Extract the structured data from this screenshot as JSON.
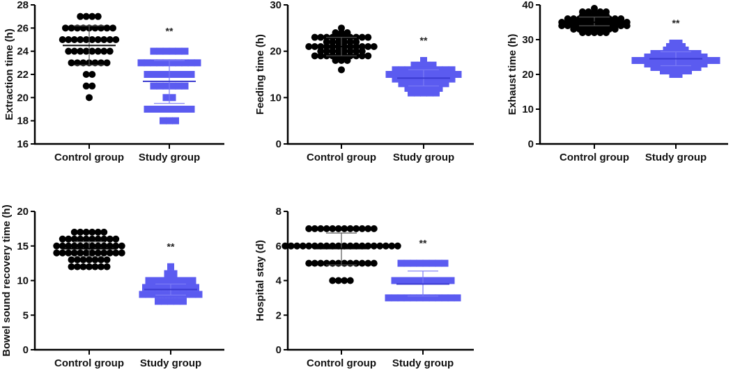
{
  "colors": {
    "control": "#000000",
    "study": "#5b5bf0",
    "axis": "#000000"
  },
  "chart_data": [
    {
      "type": "scatter",
      "ylabel": "Extraction time (h)",
      "ylim": [
        16,
        28
      ],
      "yticks": [
        16,
        18,
        20,
        22,
        24,
        26,
        28
      ],
      "categories": [
        "Control group",
        "Study group"
      ],
      "annotation": "**",
      "series": [
        {
          "name": "Control group",
          "marker": "circle",
          "levels": [
            [
              27,
              4
            ],
            [
              26,
              9
            ],
            [
              25,
              10
            ],
            [
              24,
              8
            ],
            [
              23,
              7
            ],
            [
              22,
              2
            ],
            [
              21,
              2
            ],
            [
              20,
              1
            ]
          ],
          "mean": 24.5,
          "sd": [
            22.8,
            26.2
          ]
        },
        {
          "name": "Study group",
          "marker": "square",
          "levels": [
            [
              24,
              6
            ],
            [
              23,
              10
            ],
            [
              22,
              8
            ],
            [
              21,
              6
            ],
            [
              20,
              2
            ],
            [
              19,
              8
            ],
            [
              18,
              3
            ]
          ],
          "mean": 21.4,
          "sd": [
            19.5,
            23.2
          ]
        }
      ]
    },
    {
      "type": "scatter",
      "ylabel": "Feeding time (h)",
      "ylim": [
        0,
        30
      ],
      "yticks": [
        0,
        10,
        20,
        30
      ],
      "categories": [
        "Control group",
        "Study group"
      ],
      "annotation": "**",
      "series": [
        {
          "name": "Control group",
          "marker": "circle",
          "levels": [
            [
              25,
              1
            ],
            [
              24,
              3
            ],
            [
              23,
              10
            ],
            [
              22,
              6
            ],
            [
              21,
              12
            ],
            [
              20,
              8
            ],
            [
              19,
              10
            ],
            [
              18,
              3
            ],
            [
              16,
              1
            ]
          ],
          "mean": 21,
          "sd": [
            19,
            23
          ]
        },
        {
          "name": "Study group",
          "marker": "square",
          "levels": [
            [
              18,
              1
            ],
            [
              17,
              4
            ],
            [
              16,
              10
            ],
            [
              15,
              12
            ],
            [
              14,
              10
            ],
            [
              13,
              8
            ],
            [
              12,
              6
            ],
            [
              11,
              5
            ]
          ],
          "mean": 14.2,
          "sd": [
            12.5,
            16
          ]
        }
      ]
    },
    {
      "type": "scatter",
      "ylabel": "Exhaust time (h)",
      "ylim": [
        0,
        40
      ],
      "yticks": [
        0,
        10,
        20,
        30,
        40
      ],
      "categories": [
        "Control group",
        "Study group"
      ],
      "annotation": "**",
      "series": [
        {
          "name": "Control group",
          "marker": "circle",
          "levels": [
            [
              39,
              1
            ],
            [
              38,
              5
            ],
            [
              37,
              5
            ],
            [
              36,
              10
            ],
            [
              35,
              12
            ],
            [
              34,
              12
            ],
            [
              33,
              8
            ],
            [
              32,
              5
            ]
          ],
          "mean": 35,
          "sd": [
            34,
            36.5
          ]
        },
        {
          "name": "Study group",
          "marker": "square",
          "levels": [
            [
              29,
              2
            ],
            [
              28,
              3
            ],
            [
              27,
              4
            ],
            [
              26,
              8
            ],
            [
              25,
              10
            ],
            [
              24,
              14
            ],
            [
              23,
              10
            ],
            [
              22,
              8
            ],
            [
              21,
              5
            ],
            [
              20,
              2
            ]
          ],
          "mean": 24.5,
          "sd": [
            22.5,
            26.5
          ]
        }
      ]
    },
    {
      "type": "scatter",
      "ylabel": "Bowel sound recovery time (h)",
      "ylim": [
        0,
        20
      ],
      "yticks": [
        0,
        5,
        10,
        15,
        20
      ],
      "categories": [
        "Control group",
        "Study group"
      ],
      "annotation": "**",
      "series": [
        {
          "name": "Control group",
          "marker": "circle",
          "levels": [
            [
              17,
              6
            ],
            [
              16,
              10
            ],
            [
              15,
              12
            ],
            [
              14,
              12
            ],
            [
              13,
              7
            ],
            [
              12,
              7
            ]
          ],
          "mean": 14.6,
          "sd": [
            13.5,
            15.6
          ]
        },
        {
          "name": "Study group",
          "marker": "square",
          "levels": [
            [
              12,
              1
            ],
            [
              11,
              2
            ],
            [
              10,
              8
            ],
            [
              9,
              9
            ],
            [
              8,
              10
            ],
            [
              7,
              5
            ]
          ],
          "mean": 8.7,
          "sd": [
            7.9,
            9.5
          ]
        }
      ]
    },
    {
      "type": "scatter",
      "ylabel": "Hospital stay (d)",
      "ylim": [
        0,
        8
      ],
      "yticks": [
        0,
        2,
        4,
        6,
        8
      ],
      "categories": [
        "Control group",
        "Study group"
      ],
      "annotation": "**",
      "series": [
        {
          "name": "Control group",
          "marker": "circle",
          "levels": [
            [
              7,
              12
            ],
            [
              6,
              20
            ],
            [
              5,
              12
            ],
            [
              4,
              4
            ]
          ],
          "mean": 5.85,
          "sd": [
            4.9,
            6.75
          ]
        },
        {
          "name": "Study group",
          "marker": "square",
          "levels": [
            [
              5,
              8
            ],
            [
              4,
              10
            ],
            [
              3,
              12
            ]
          ],
          "mean": 3.8,
          "sd": [
            3.1,
            4.55
          ]
        }
      ]
    }
  ]
}
